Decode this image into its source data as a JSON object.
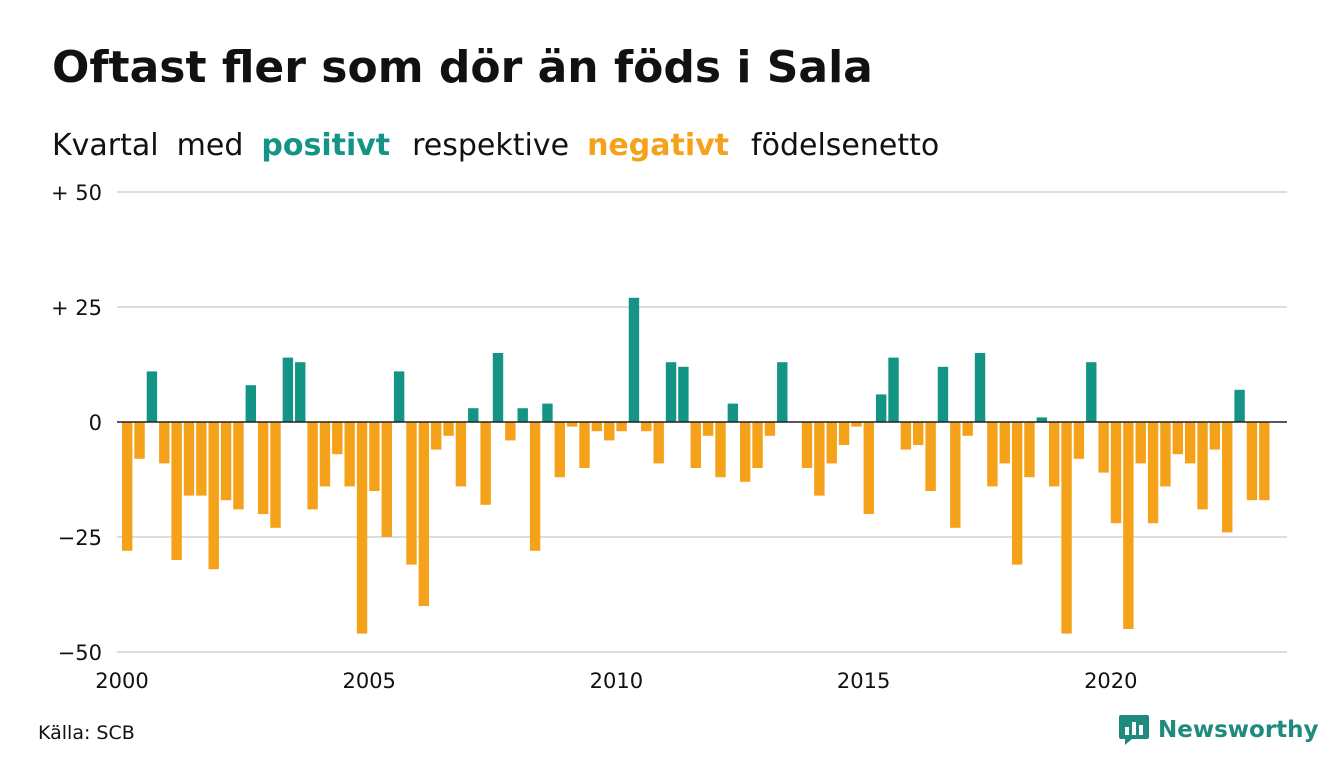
{
  "title": "Oftast fler som dör än föds i Sala",
  "subtitle": {
    "part1": "Kvartal",
    "part2": "med",
    "positive": "positivt",
    "part3": "respektive",
    "negative": "negativt",
    "part4": "födelsenetto"
  },
  "source": "Källa: SCB",
  "brand": "Newsworthy",
  "colors": {
    "positive": "#139484",
    "negative": "#f5a119",
    "grid": "#dddddd",
    "axis": "#222222",
    "brand": "#1f8a7e"
  },
  "chart_data": {
    "type": "bar",
    "title": "Oftast fler som dör än föds i Sala",
    "subtitle": "Kvartal med positivt respektive negativt födelsenetto",
    "ylim": [
      -50,
      50
    ],
    "yticks": [
      {
        "value": 50,
        "label": "+ 50"
      },
      {
        "value": 25,
        "label": "+ 25"
      },
      {
        "value": 0,
        "label": "0"
      },
      {
        "value": -25,
        "label": "−25"
      },
      {
        "value": -50,
        "label": "−50"
      }
    ],
    "xticks": [
      "2000",
      "2005",
      "2010",
      "2015",
      "2020"
    ],
    "start_year": 2000,
    "values": [
      -28,
      -8,
      11,
      -9,
      -30,
      -16,
      -16,
      -32,
      -17,
      -19,
      8,
      -20,
      -23,
      14,
      13,
      -19,
      -14,
      -7,
      -14,
      -46,
      -15,
      -25,
      11,
      -31,
      -40,
      -6,
      -3,
      -14,
      3,
      -18,
      15,
      -4,
      3,
      -28,
      4,
      -12,
      -1,
      -10,
      -2,
      -4,
      -2,
      27,
      -2,
      -9,
      13,
      12,
      -10,
      -3,
      -12,
      4,
      -13,
      -10,
      -3,
      13,
      0,
      -10,
      -16,
      -9,
      -5,
      -1,
      -20,
      6,
      14,
      -6,
      -5,
      -15,
      12,
      -23,
      -3,
      15,
      -14,
      -9,
      -31,
      -12,
      1,
      -14,
      -46,
      -8,
      13,
      -11,
      -22,
      -45,
      -9,
      -22,
      -14,
      -7,
      -9,
      -19,
      -6,
      -24,
      7,
      -17,
      -17
    ]
  }
}
